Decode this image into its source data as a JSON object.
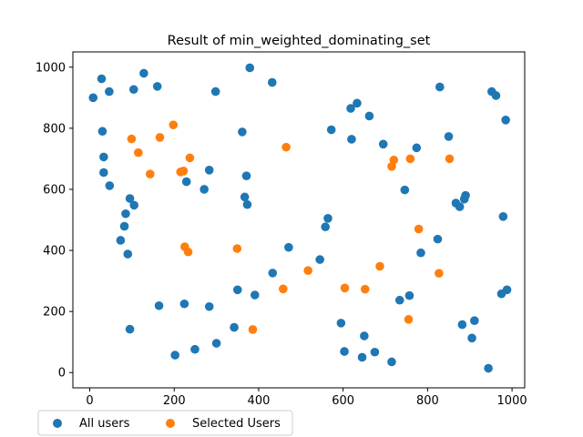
{
  "chart_data": {
    "type": "scatter",
    "title": "Result of min_weighted_dominating_set",
    "xlabel": "",
    "ylabel": "",
    "xlim": [
      -40,
      1030
    ],
    "ylim": [
      -50,
      1050
    ],
    "xticks": [
      0,
      200,
      400,
      600,
      800,
      1000
    ],
    "yticks": [
      0,
      200,
      400,
      600,
      800,
      1000
    ],
    "grid": false,
    "legend_position": "below-left",
    "series": [
      {
        "name": "All users",
        "color": "#1f77b4",
        "points": [
          [
            8,
            900
          ],
          [
            28,
            962
          ],
          [
            46,
            920
          ],
          [
            30,
            790
          ],
          [
            33,
            706
          ],
          [
            33,
            655
          ],
          [
            47,
            612
          ],
          [
            95,
            570
          ],
          [
            105,
            548
          ],
          [
            85,
            520
          ],
          [
            82,
            479
          ],
          [
            73,
            433
          ],
          [
            90,
            388
          ],
          [
            95,
            142
          ],
          [
            128,
            980
          ],
          [
            104,
            927
          ],
          [
            160,
            937
          ],
          [
            164,
            219
          ],
          [
            202,
            57
          ],
          [
            224,
            225
          ],
          [
            229,
            625
          ],
          [
            249,
            76
          ],
          [
            271,
            600
          ],
          [
            283,
            663
          ],
          [
            283,
            216
          ],
          [
            298,
            920
          ],
          [
            300,
            96
          ],
          [
            342,
            148
          ],
          [
            350,
            271
          ],
          [
            361,
            788
          ],
          [
            367,
            575
          ],
          [
            371,
            644
          ],
          [
            373,
            550
          ],
          [
            379,
            998
          ],
          [
            391,
            254
          ],
          [
            432,
            950
          ],
          [
            433,
            326
          ],
          [
            471,
            410
          ],
          [
            545,
            370
          ],
          [
            558,
            477
          ],
          [
            564,
            505
          ],
          [
            572,
            795
          ],
          [
            595,
            162
          ],
          [
            603,
            69
          ],
          [
            618,
            865
          ],
          [
            620,
            764
          ],
          [
            633,
            882
          ],
          [
            645,
            50
          ],
          [
            650,
            120
          ],
          [
            662,
            840
          ],
          [
            675,
            67
          ],
          [
            695,
            748
          ],
          [
            715,
            35
          ],
          [
            734,
            237
          ],
          [
            746,
            598
          ],
          [
            757,
            252
          ],
          [
            774,
            736
          ],
          [
            784,
            392
          ],
          [
            824,
            437
          ],
          [
            829,
            935
          ],
          [
            850,
            773
          ],
          [
            867,
            555
          ],
          [
            876,
            543
          ],
          [
            882,
            157
          ],
          [
            887,
            568
          ],
          [
            890,
            580
          ],
          [
            905,
            113
          ],
          [
            911,
            170
          ],
          [
            944,
            14
          ],
          [
            952,
            920
          ],
          [
            962,
            907
          ],
          [
            975,
            258
          ],
          [
            979,
            511
          ],
          [
            985,
            827
          ],
          [
            988,
            271
          ]
        ]
      },
      {
        "name": "Selected Users",
        "color": "#ff7f0e",
        "points": [
          [
            99,
            765
          ],
          [
            115,
            720
          ],
          [
            143,
            650
          ],
          [
            166,
            770
          ],
          [
            198,
            811
          ],
          [
            215,
            657
          ],
          [
            222,
            660
          ],
          [
            225,
            412
          ],
          [
            233,
            395
          ],
          [
            237,
            703
          ],
          [
            349,
            406
          ],
          [
            386,
            141
          ],
          [
            458,
            274
          ],
          [
            465,
            738
          ],
          [
            517,
            334
          ],
          [
            604,
            277
          ],
          [
            652,
            273
          ],
          [
            687,
            348
          ],
          [
            715,
            675
          ],
          [
            720,
            696
          ],
          [
            755,
            174
          ],
          [
            759,
            700
          ],
          [
            779,
            470
          ],
          [
            827,
            325
          ],
          [
            852,
            700
          ]
        ]
      }
    ]
  }
}
